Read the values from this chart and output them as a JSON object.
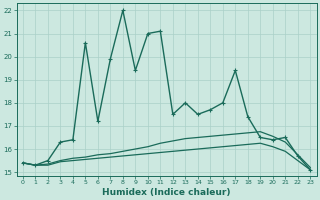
{
  "xlabel": "Humidex (Indice chaleur)",
  "background_color": "#cce8e0",
  "grid_color": "#aad0c8",
  "line_color": "#1a6b5a",
  "xlim_min": -0.5,
  "xlim_max": 23.5,
  "ylim_min": 14.85,
  "ylim_max": 22.3,
  "xticks": [
    0,
    1,
    2,
    3,
    4,
    5,
    6,
    7,
    8,
    9,
    10,
    11,
    12,
    13,
    14,
    15,
    16,
    17,
    18,
    19,
    20,
    21,
    22,
    23
  ],
  "yticks": [
    15,
    16,
    17,
    18,
    19,
    20,
    21,
    22
  ],
  "series": [
    {
      "x": [
        0,
        1,
        2,
        3,
        4,
        5,
        6,
        7,
        8,
        9,
        10,
        11,
        12,
        13,
        14,
        15,
        16,
        17,
        18,
        19,
        20,
        21,
        22,
        23
      ],
      "y": [
        15.4,
        15.3,
        15.3,
        15.45,
        15.5,
        15.55,
        15.6,
        15.65,
        15.7,
        15.75,
        15.8,
        15.85,
        15.9,
        15.95,
        16.0,
        16.05,
        16.1,
        16.15,
        16.2,
        16.25,
        16.1,
        15.9,
        15.5,
        15.1
      ],
      "marker": "None",
      "linewidth": 0.9
    },
    {
      "x": [
        0,
        1,
        2,
        3,
        4,
        5,
        6,
        7,
        8,
        9,
        10,
        11,
        12,
        13,
        14,
        15,
        16,
        17,
        18,
        19,
        20,
        21,
        22,
        23
      ],
      "y": [
        15.4,
        15.3,
        15.35,
        15.5,
        15.6,
        15.65,
        15.75,
        15.8,
        15.9,
        16.0,
        16.1,
        16.25,
        16.35,
        16.45,
        16.5,
        16.55,
        16.6,
        16.65,
        16.7,
        16.75,
        16.55,
        16.3,
        15.75,
        15.2
      ],
      "marker": "None",
      "linewidth": 0.9
    },
    {
      "x": [
        0,
        1,
        2,
        3,
        4,
        5,
        6,
        7,
        8,
        9,
        10,
        11,
        12,
        13,
        14,
        15,
        16,
        17,
        18,
        19,
        20,
        21,
        22,
        23
      ],
      "y": [
        15.4,
        15.3,
        15.5,
        16.3,
        16.4,
        20.6,
        17.2,
        19.9,
        22.0,
        19.4,
        21.0,
        21.1,
        17.5,
        18.0,
        17.5,
        17.7,
        18.0,
        19.4,
        17.4,
        16.5,
        16.4,
        16.5,
        15.7,
        15.1
      ],
      "marker": "+",
      "markersize": 3.5,
      "linewidth": 1.0
    }
  ]
}
